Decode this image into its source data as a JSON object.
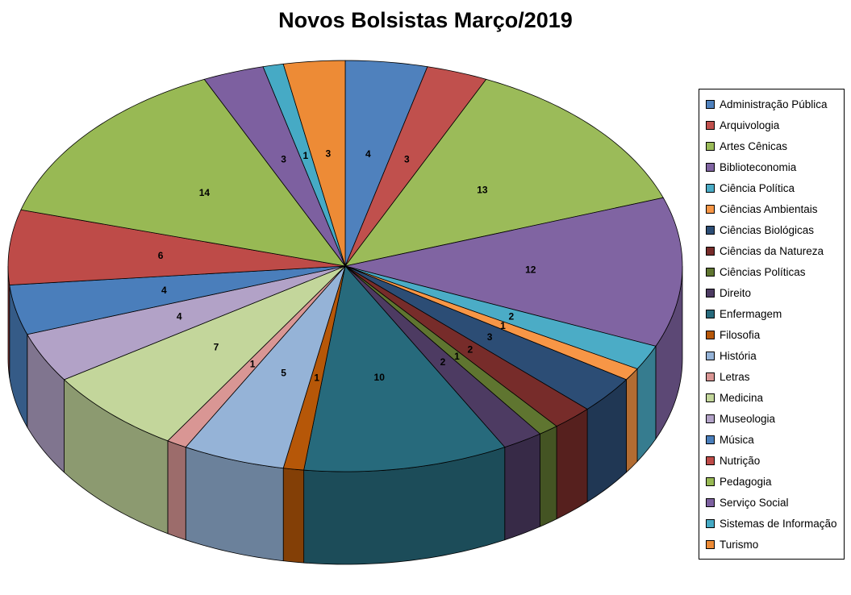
{
  "chart_data": {
    "type": "pie",
    "style": "3d",
    "title": "Novos Bolsistas Março/2019",
    "legend_position": "right",
    "start_angle_deg": 0,
    "direction": "clockwise",
    "total": 102,
    "background_color": "#FFFFFF",
    "categories": [
      "Administração Pública",
      "Arquivologia",
      "Artes Cênicas",
      "Biblioteconomia",
      "Ciência Política",
      "Ciências Ambientais",
      "Ciências Biológicas",
      "Ciências da Natureza",
      "Ciências Políticas",
      "Direito",
      "Enfermagem",
      "Filosofia",
      "História",
      "Letras",
      "Medicina",
      "Museologia",
      "Música",
      "Nutrição",
      "Pedagogia",
      "Serviço Social",
      "Sistemas de Informação",
      "Turismo"
    ],
    "values": [
      4,
      3,
      13,
      12,
      2,
      1,
      3,
      2,
      1,
      2,
      10,
      1,
      5,
      1,
      7,
      4,
      4,
      6,
      14,
      3,
      1,
      3
    ],
    "colors": [
      "#4F81BD",
      "#C0504D",
      "#9BBB59",
      "#8064A2",
      "#4BACC6",
      "#F79646",
      "#2C4D75",
      "#772C2A",
      "#5F7530",
      "#4D3B62",
      "#276A7C",
      "#B65708",
      "#95B3D7",
      "#D99694",
      "#C3D69B",
      "#B2A2C7",
      "#4A7EBB",
      "#BE4B48",
      "#98B954",
      "#7D60A0",
      "#46AAC5",
      "#ED8B36"
    ]
  }
}
